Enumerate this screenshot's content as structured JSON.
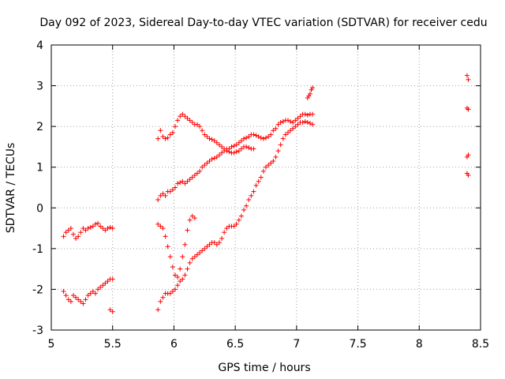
{
  "chart_data": {
    "type": "scatter",
    "title": "Day 092 of 2023, Sidereal Day-to-day VTEC variation (SDTVAR) for receiver cedu",
    "xlabel": "GPS time / hours",
    "ylabel": "SDTVAR / TECUs",
    "xlim": [
      5,
      8.5
    ],
    "ylim": [
      -3,
      4
    ],
    "xticks": [
      "5",
      "5.5",
      "6",
      "6.5",
      "7",
      "7.5",
      "8",
      "8.5"
    ],
    "yticks": [
      "-3",
      "-2",
      "-1",
      "0",
      "1",
      "2",
      "3",
      "4"
    ],
    "grid": true,
    "marker": "+",
    "color": "#ff0000",
    "series": [
      {
        "x": [
          5.1,
          5.12,
          5.14,
          5.16,
          5.18,
          5.2,
          5.22,
          5.24,
          5.26,
          5.28,
          5.3,
          5.32,
          5.34,
          5.36,
          5.38,
          5.4,
          5.42,
          5.44,
          5.46,
          5.48,
          5.5
        ],
        "y": [
          -0.7,
          -0.6,
          -0.55,
          -0.5,
          -0.65,
          -0.75,
          -0.7,
          -0.6,
          -0.5,
          -0.55,
          -0.5,
          -0.48,
          -0.45,
          -0.4,
          -0.38,
          -0.45,
          -0.5,
          -0.55,
          -0.5,
          -0.48,
          -0.5
        ]
      },
      {
        "x": [
          5.1,
          5.12,
          5.14,
          5.16,
          5.18,
          5.2,
          5.22,
          5.24,
          5.26,
          5.28,
          5.3,
          5.32,
          5.34,
          5.36,
          5.38,
          5.4,
          5.42,
          5.44,
          5.46,
          5.48,
          5.5
        ],
        "y": [
          -2.05,
          -2.15,
          -2.25,
          -2.3,
          -2.15,
          -2.2,
          -2.25,
          -2.3,
          -2.35,
          -2.25,
          -2.15,
          -2.1,
          -2.05,
          -2.1,
          -2.0,
          -1.95,
          -1.9,
          -1.85,
          -1.8,
          -1.75,
          -1.75
        ]
      },
      {
        "x": [
          5.48,
          5.5
        ],
        "y": [
          -2.5,
          -2.55
        ]
      },
      {
        "x": [
          5.87,
          5.89,
          5.91,
          5.93,
          5.95,
          5.97,
          5.99,
          6.01,
          6.03,
          6.05,
          6.07,
          6.09,
          6.11,
          6.13,
          6.15,
          6.17,
          6.19,
          6.21,
          6.23,
          6.25,
          6.27,
          6.29,
          6.31,
          6.33,
          6.35,
          6.37,
          6.39,
          6.41,
          6.43,
          6.45,
          6.47,
          6.49,
          6.51,
          6.53,
          6.55,
          6.57,
          6.59,
          6.61,
          6.63,
          6.65
        ],
        "y": [
          1.7,
          1.9,
          1.75,
          1.7,
          1.72,
          1.8,
          1.85,
          2.0,
          2.15,
          2.25,
          2.3,
          2.25,
          2.2,
          2.15,
          2.1,
          2.05,
          2.05,
          2.0,
          1.9,
          1.8,
          1.75,
          1.7,
          1.68,
          1.65,
          1.6,
          1.55,
          1.5,
          1.45,
          1.4,
          1.38,
          1.35,
          1.35,
          1.38,
          1.4,
          1.45,
          1.5,
          1.5,
          1.48,
          1.45,
          1.45
        ]
      },
      {
        "x": [
          5.87,
          5.89,
          5.91,
          5.93,
          5.95,
          5.97,
          5.99,
          6.01,
          6.03,
          6.05,
          6.07,
          6.09,
          6.11,
          6.13,
          6.15,
          6.17,
          6.19,
          6.21,
          6.23,
          6.25,
          6.27,
          6.29,
          6.31,
          6.33,
          6.35,
          6.37,
          6.39,
          6.41,
          6.43,
          6.45,
          6.47,
          6.49,
          6.51,
          6.53,
          6.55,
          6.57,
          6.59,
          6.61,
          6.63,
          6.65,
          6.67,
          6.69,
          6.71,
          6.73,
          6.75,
          6.77,
          6.79,
          6.81,
          6.83,
          6.85,
          6.87,
          6.89,
          6.91,
          6.93,
          6.95,
          6.97,
          6.99,
          7.01,
          7.03,
          7.05,
          7.07,
          7.09,
          7.11,
          7.13
        ],
        "y": [
          0.2,
          0.3,
          0.35,
          0.3,
          0.4,
          0.4,
          0.45,
          0.5,
          0.6,
          0.62,
          0.65,
          0.6,
          0.65,
          0.7,
          0.75,
          0.8,
          0.85,
          0.9,
          1.0,
          1.05,
          1.1,
          1.15,
          1.2,
          1.22,
          1.25,
          1.3,
          1.35,
          1.4,
          1.45,
          1.45,
          1.5,
          1.52,
          1.55,
          1.6,
          1.65,
          1.7,
          1.72,
          1.75,
          1.8,
          1.8,
          1.78,
          1.75,
          1.72,
          1.7,
          1.72,
          1.75,
          1.8,
          1.9,
          1.95,
          2.05,
          2.1,
          2.12,
          2.15,
          2.15,
          2.12,
          2.1,
          2.15,
          2.2,
          2.25,
          2.3,
          2.3,
          2.28,
          2.3,
          2.3
        ]
      },
      {
        "x": [
          5.87,
          5.89,
          5.91,
          5.93,
          5.95,
          5.97,
          5.99,
          6.01,
          6.03,
          6.05,
          6.07,
          6.09,
          6.11,
          6.13,
          6.15,
          6.17
        ],
        "y": [
          -0.4,
          -0.45,
          -0.5,
          -0.7,
          -0.95,
          -1.2,
          -1.45,
          -1.65,
          -1.7,
          -1.5,
          -1.2,
          -0.9,
          -0.55,
          -0.3,
          -0.2,
          -0.25
        ]
      },
      {
        "x": [
          5.87,
          5.89,
          5.91,
          5.93,
          5.95,
          5.97,
          5.99,
          6.01,
          6.03,
          6.05,
          6.07,
          6.09,
          6.11,
          6.13,
          6.15,
          6.17,
          6.19,
          6.21,
          6.23,
          6.25,
          6.27,
          6.29,
          6.31,
          6.33,
          6.35,
          6.37,
          6.39,
          6.41,
          6.43,
          6.45,
          6.47,
          6.49,
          6.51,
          6.53,
          6.55,
          6.57,
          6.59,
          6.61,
          6.63,
          6.65,
          6.67,
          6.69,
          6.71,
          6.73,
          6.75,
          6.77,
          6.79,
          6.81,
          6.83,
          6.85,
          6.87,
          6.89,
          6.91,
          6.93,
          6.95,
          6.97,
          6.99,
          7.01,
          7.03,
          7.05,
          7.07,
          7.09,
          7.11,
          7.13
        ],
        "y": [
          -2.5,
          -2.3,
          -2.2,
          -2.1,
          -2.1,
          -2.1,
          -2.05,
          -2.0,
          -1.9,
          -1.8,
          -1.75,
          -1.65,
          -1.5,
          -1.35,
          -1.25,
          -1.2,
          -1.15,
          -1.1,
          -1.05,
          -1.0,
          -0.95,
          -0.9,
          -0.85,
          -0.85,
          -0.9,
          -0.85,
          -0.75,
          -0.6,
          -0.5,
          -0.45,
          -0.45,
          -0.45,
          -0.4,
          -0.3,
          -0.2,
          -0.05,
          0.05,
          0.2,
          0.3,
          0.4,
          0.55,
          0.65,
          0.75,
          0.9,
          1.0,
          1.05,
          1.1,
          1.15,
          1.25,
          1.4,
          1.55,
          1.7,
          1.8,
          1.85,
          1.9,
          1.95,
          2.0,
          2.05,
          2.1,
          2.1,
          2.12,
          2.1,
          2.08,
          2.05
        ]
      },
      {
        "x": [
          7.09,
          7.1,
          7.11,
          7.12,
          7.13
        ],
        "y": [
          2.7,
          2.75,
          2.8,
          2.9,
          2.95
        ]
      },
      {
        "x": [
          8.39,
          8.4,
          8.39,
          8.4,
          8.39,
          8.4,
          8.39,
          8.4
        ],
        "y": [
          3.25,
          3.15,
          2.45,
          2.42,
          1.25,
          1.3,
          0.85,
          0.8
        ]
      }
    ]
  }
}
